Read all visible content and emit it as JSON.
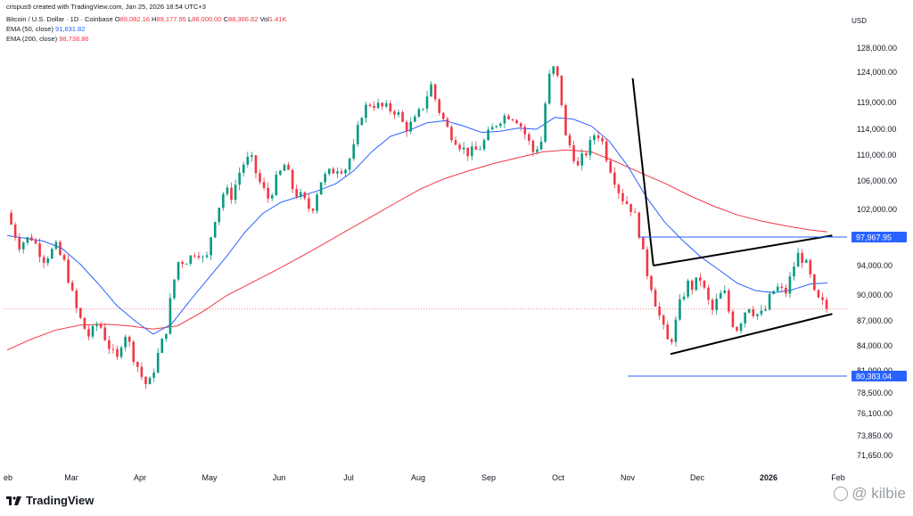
{
  "header": {
    "creator": "crispus9 created with TradingView.com, Jan 25, 2026 18:54 UTC+3",
    "symbol": "Bitcoin / U.S. Dollar · 1D · Coinbase",
    "ohlc": {
      "o_label": "O",
      "o": "89,082.16",
      "h_label": "H",
      "h": "89,177.95",
      "l_label": "L",
      "l": "88,000.00",
      "c_label": "C",
      "c": "88,366.82",
      "vol_label": "Vol",
      "vol": "1.41K"
    },
    "ema50_label": "EMA (50, close)",
    "ema50_value": "91,631.82",
    "ema200_label": "EMA (200, close)",
    "ema200_value": "98,738.86"
  },
  "currency": "USD",
  "branding": {
    "logo_text": "TradingView",
    "watermark": "@ kilbie"
  },
  "colors": {
    "up": "#089981",
    "down": "#f23645",
    "ema50": "#2962ff",
    "ema200": "#f23645",
    "level_line": "#2962ff",
    "trendline": "#000000",
    "last_price": "#f23645"
  },
  "chart_data": {
    "type": "candlestick",
    "y_ticks": [
      "128,000.00",
      "124,000.00",
      "119,000.00",
      "114,000.00",
      "110,000.00",
      "106,000.00",
      "102,000.00",
      "94,000.00",
      "90,000.00",
      "87,000.00",
      "84,000.00",
      "81,000.00",
      "78,500.00",
      "76,100.00",
      "73,850.00",
      "71,650.00"
    ],
    "x_ticks": [
      "eb",
      "Mar",
      "Apr",
      "May",
      "Jun",
      "Jul",
      "Aug",
      "Sep",
      "Oct",
      "Nov",
      "Dec",
      "2026",
      "Feb"
    ],
    "level_labels": [
      {
        "price": 97967.95,
        "label": "97,967.95"
      },
      {
        "price": 80383.04,
        "label": "80,383.04"
      }
    ],
    "last_price": 88366.82,
    "price_anchor": [
      [
        1,
        128000
      ],
      [
        2,
        124000
      ],
      [
        3,
        119000
      ],
      [
        4,
        114000
      ],
      [
        5,
        110000
      ],
      [
        6,
        106000
      ],
      [
        7,
        102000
      ],
      [
        8,
        97967.95
      ],
      [
        9,
        94000
      ],
      [
        10,
        90000
      ],
      [
        11,
        87000
      ],
      [
        12,
        84000
      ],
      [
        13,
        81000
      ],
      [
        14,
        80383.04
      ],
      [
        15,
        78500
      ],
      [
        16,
        76100
      ],
      [
        17,
        73850
      ],
      [
        18,
        71650
      ]
    ],
    "close_path": [
      [
        0.0,
        101500
      ],
      [
        0.5,
        99000
      ],
      [
        1.0,
        97000
      ],
      [
        2.0,
        98000
      ],
      [
        3.0,
        95000
      ],
      [
        4.0,
        96500
      ],
      [
        4.8,
        94000
      ],
      [
        5.5,
        89000
      ],
      [
        6.2,
        86500
      ],
      [
        6.8,
        85000
      ],
      [
        7.5,
        87000
      ],
      [
        8.2,
        84500
      ],
      [
        9.0,
        82000
      ],
      [
        9.6,
        86000
      ],
      [
        10.2,
        83500
      ],
      [
        11.0,
        80500
      ],
      [
        11.6,
        79000
      ],
      [
        12.3,
        82500
      ],
      [
        13.0,
        85500
      ],
      [
        14.0,
        94500
      ],
      [
        15.0,
        95000
      ],
      [
        15.6,
        96500
      ],
      [
        16.3,
        94000
      ],
      [
        17.0,
        100500
      ],
      [
        17.8,
        104500
      ],
      [
        18.5,
        104000
      ],
      [
        19.3,
        108500
      ],
      [
        20.0,
        109500
      ],
      [
        20.7,
        106000
      ],
      [
        21.4,
        103500
      ],
      [
        22.1,
        106000
      ],
      [
        22.8,
        108500
      ],
      [
        23.5,
        104800
      ],
      [
        24.2,
        103500
      ],
      [
        25.0,
        101800
      ],
      [
        25.7,
        106000
      ],
      [
        26.4,
        107000
      ],
      [
        27.1,
        108200
      ],
      [
        27.8,
        108000
      ],
      [
        28.5,
        111000
      ],
      [
        29.2,
        117500
      ],
      [
        29.9,
        119000
      ],
      [
        30.6,
        118200
      ],
      [
        31.3,
        117800
      ],
      [
        32.0,
        117400
      ],
      [
        32.7,
        114200
      ],
      [
        33.4,
        115200
      ],
      [
        34.1,
        118000
      ],
      [
        34.8,
        122000
      ],
      [
        35.5,
        117500
      ],
      [
        36.2,
        114000
      ],
      [
        36.9,
        112500
      ],
      [
        37.6,
        110600
      ],
      [
        38.3,
        110300
      ],
      [
        39.0,
        111500
      ],
      [
        39.7,
        113500
      ],
      [
        40.4,
        115800
      ],
      [
        41.1,
        116800
      ],
      [
        41.8,
        116200
      ],
      [
        42.5,
        113500
      ],
      [
        43.2,
        110500
      ],
      [
        43.9,
        112200
      ],
      [
        44.4,
        122500
      ],
      [
        44.9,
        124500
      ],
      [
        45.4,
        122000
      ],
      [
        45.9,
        112500
      ],
      [
        46.4,
        111000
      ],
      [
        46.9,
        108000
      ],
      [
        47.4,
        110000
      ],
      [
        47.9,
        111500
      ],
      [
        48.4,
        114000
      ],
      [
        48.9,
        112000
      ],
      [
        49.4,
        109000
      ],
      [
        49.9,
        106500
      ],
      [
        50.4,
        104000
      ],
      [
        50.9,
        103000
      ],
      [
        51.4,
        102000
      ],
      [
        51.9,
        99000
      ],
      [
        52.4,
        94000
      ],
      [
        52.9,
        91500
      ],
      [
        53.4,
        88500
      ],
      [
        53.9,
        86000
      ],
      [
        54.4,
        84000
      ],
      [
        54.9,
        86500
      ],
      [
        55.4,
        89500
      ],
      [
        55.9,
        91500
      ],
      [
        56.4,
        91000
      ],
      [
        56.9,
        92500
      ],
      [
        57.4,
        90000
      ],
      [
        57.9,
        88000
      ],
      [
        58.4,
        89500
      ],
      [
        58.9,
        90500
      ],
      [
        59.4,
        87500
      ],
      [
        59.9,
        86000
      ],
      [
        60.4,
        87500
      ],
      [
        60.9,
        89000
      ],
      [
        61.4,
        88000
      ],
      [
        61.9,
        87500
      ],
      [
        62.4,
        88500
      ],
      [
        62.9,
        90500
      ],
      [
        63.4,
        91000
      ],
      [
        63.9,
        90000
      ],
      [
        64.4,
        92500
      ],
      [
        64.9,
        95500
      ],
      [
        65.4,
        95000
      ],
      [
        65.9,
        93000
      ],
      [
        66.4,
        89500
      ],
      [
        66.9,
        89000
      ],
      [
        67.4,
        88366.82
      ]
    ],
    "ema50_path": [
      [
        0.0,
        98200
      ],
      [
        1.5,
        97800
      ],
      [
        3.0,
        97400
      ],
      [
        4.5,
        96400
      ],
      [
        6.0,
        94200
      ],
      [
        7.5,
        91500
      ],
      [
        9.0,
        88800
      ],
      [
        10.5,
        87000
      ],
      [
        12.0,
        85400
      ],
      [
        13.5,
        86600
      ],
      [
        15.0,
        89300
      ],
      [
        16.5,
        92200
      ],
      [
        18.0,
        95200
      ],
      [
        19.5,
        98600
      ],
      [
        21.0,
        101400
      ],
      [
        22.5,
        103000
      ],
      [
        24.0,
        103800
      ],
      [
        25.5,
        104600
      ],
      [
        27.0,
        105600
      ],
      [
        28.5,
        107600
      ],
      [
        30.0,
        110600
      ],
      [
        31.5,
        112900
      ],
      [
        33.0,
        113800
      ],
      [
        34.5,
        115200
      ],
      [
        36.0,
        115600
      ],
      [
        37.5,
        114600
      ],
      [
        39.0,
        113500
      ],
      [
        40.5,
        113700
      ],
      [
        42.0,
        114200
      ],
      [
        43.5,
        114000
      ],
      [
        45.0,
        116200
      ],
      [
        46.5,
        115900
      ],
      [
        48.0,
        114600
      ],
      [
        49.5,
        112100
      ],
      [
        51.0,
        108300
      ],
      [
        52.5,
        103800
      ],
      [
        54.0,
        100200
      ],
      [
        55.5,
        97500
      ],
      [
        57.0,
        95200
      ],
      [
        58.5,
        93400
      ],
      [
        60.0,
        91600
      ],
      [
        61.5,
        90600
      ],
      [
        63.0,
        90300
      ],
      [
        64.5,
        90700
      ],
      [
        66.0,
        91500
      ],
      [
        67.4,
        91632
      ]
    ],
    "ema200_path": [
      [
        0.0,
        83500
      ],
      [
        2.0,
        84800
      ],
      [
        4.0,
        85900
      ],
      [
        6.0,
        86500
      ],
      [
        8.0,
        86600
      ],
      [
        10.0,
        86400
      ],
      [
        12.0,
        86000
      ],
      [
        14.0,
        86400
      ],
      [
        16.0,
        88000
      ],
      [
        18.0,
        89900
      ],
      [
        20.0,
        91600
      ],
      [
        22.0,
        93300
      ],
      [
        24.0,
        95100
      ],
      [
        26.0,
        97000
      ],
      [
        28.0,
        99000
      ],
      [
        30.0,
        101000
      ],
      [
        32.0,
        103000
      ],
      [
        34.0,
        104900
      ],
      [
        36.0,
        106400
      ],
      [
        38.0,
        107600
      ],
      [
        40.0,
        108700
      ],
      [
        42.0,
        109600
      ],
      [
        44.0,
        110500
      ],
      [
        46.0,
        110800
      ],
      [
        48.0,
        110500
      ],
      [
        50.0,
        109000
      ],
      [
        52.0,
        107300
      ],
      [
        54.0,
        105700
      ],
      [
        56.0,
        104000
      ],
      [
        58.0,
        102500
      ],
      [
        60.0,
        101200
      ],
      [
        62.0,
        100300
      ],
      [
        64.0,
        99600
      ],
      [
        66.0,
        99000
      ],
      [
        67.4,
        98739
      ]
    ],
    "trendlines": [
      {
        "from": [
          51.4,
          123000
        ],
        "to": [
          53.1,
          94000
        ]
      },
      {
        "from": [
          53.1,
          94000
        ],
        "to": [
          67.8,
          98200
        ]
      },
      {
        "from": [
          54.5,
          83000
        ],
        "to": [
          67.8,
          87800
        ]
      }
    ],
    "hlines": [
      {
        "price": 97967.95,
        "from": 51.9
      },
      {
        "price": 80383.04,
        "from": 51.0
      }
    ],
    "grid": false,
    "legend": "top-left"
  }
}
